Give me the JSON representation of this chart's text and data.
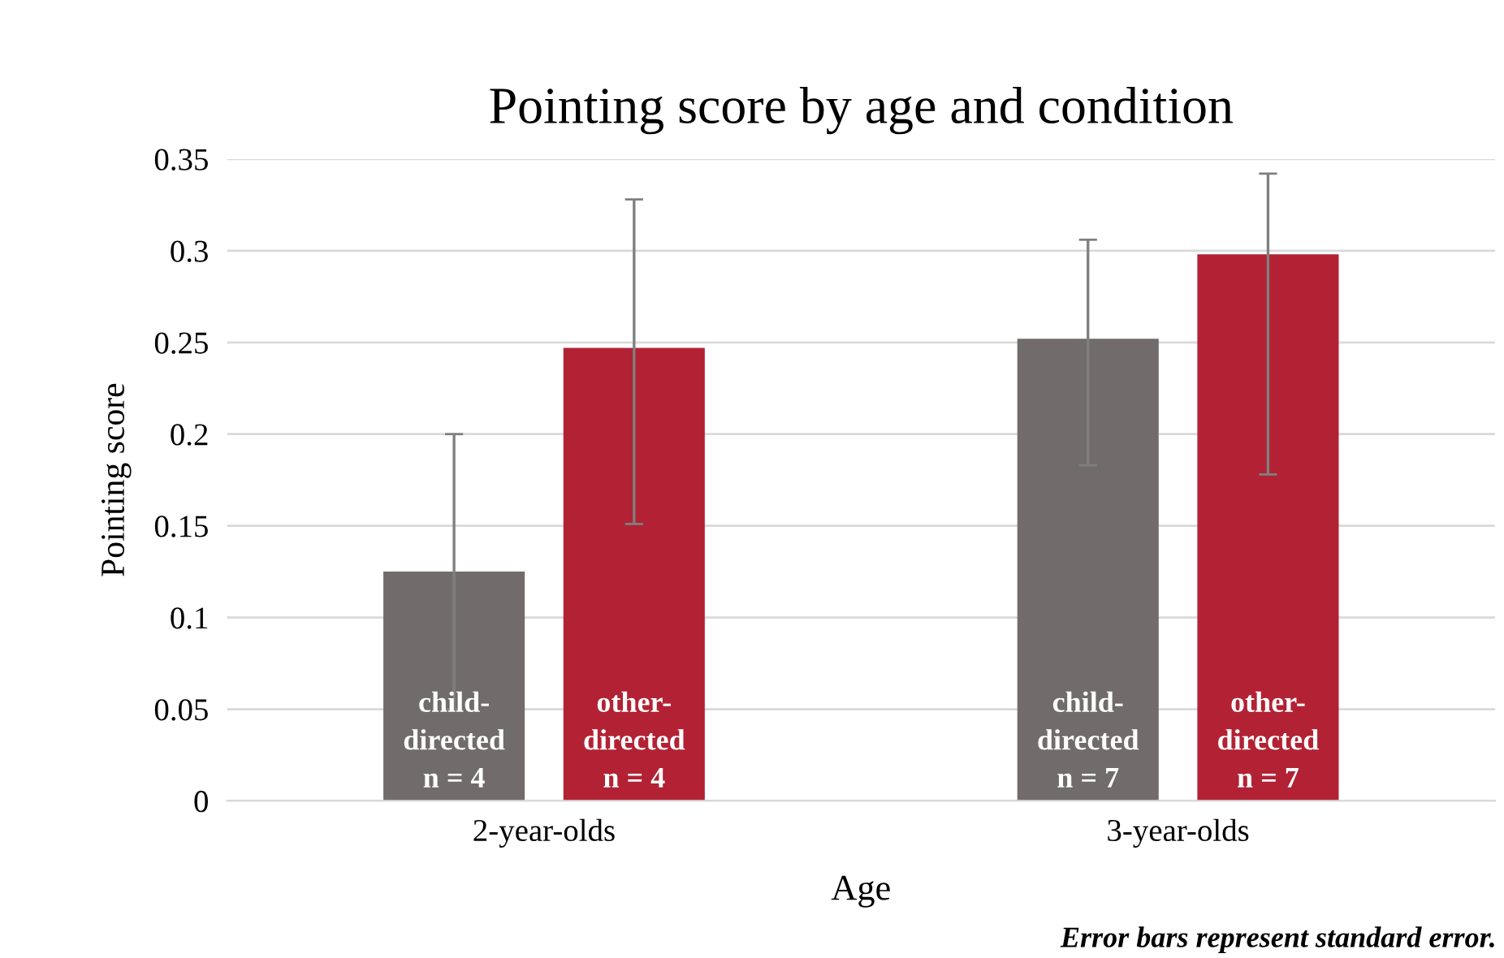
{
  "chart_data": {
    "type": "bar",
    "title": "Pointing score by age and condition",
    "xlabel": "Age",
    "ylabel": "Pointing score",
    "categories": [
      "2-year-olds",
      "3-year-olds"
    ],
    "series": [
      {
        "color": "#716c6b",
        "values": [
          0.125,
          0.252
        ],
        "errors": [
          [
            0.05,
            0.2
          ],
          [
            0.183,
            0.306
          ]
        ]
      },
      {
        "color": "#b22234",
        "values": [
          0.247,
          0.298
        ],
        "errors": [
          [
            0.151,
            0.328
          ],
          [
            0.178,
            0.342
          ]
        ]
      }
    ],
    "ylim": [
      0,
      0.35
    ],
    "yticks": [
      0,
      0.05,
      0.1,
      0.15,
      0.2,
      0.25,
      0.3,
      0.35
    ],
    "grid": "y",
    "legend": false,
    "annotations": [
      "child-\ndirected\nn = 4",
      "other-\ndirected\nn = 4",
      "child-\ndirected\nn = 7",
      "other-\ndirected\nn = 7",
      "Error bars represent standard error."
    ]
  }
}
